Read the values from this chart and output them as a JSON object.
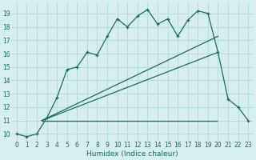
{
  "xlabel": "Humidex (Indice chaleur)",
  "background_color": "#d6eeee",
  "grid_color": "#b8ddd8",
  "line_color": "#1a6b5a",
  "xlim": [
    -0.5,
    23.5
  ],
  "ylim": [
    9.5,
    19.8
  ],
  "yticks": [
    10,
    11,
    12,
    13,
    14,
    15,
    16,
    17,
    18,
    19
  ],
  "xticks": [
    0,
    1,
    2,
    3,
    4,
    5,
    6,
    7,
    8,
    9,
    10,
    11,
    12,
    13,
    14,
    15,
    16,
    17,
    18,
    19,
    20,
    21,
    22,
    23
  ],
  "main_x": [
    0,
    1,
    2,
    3,
    4,
    5,
    6,
    7,
    8,
    9,
    10,
    11,
    12,
    13,
    14,
    15,
    16,
    17,
    18,
    19,
    20,
    21,
    22,
    23
  ],
  "main_y": [
    10.0,
    9.8,
    10.0,
    11.2,
    12.7,
    14.8,
    15.0,
    16.1,
    15.9,
    17.3,
    18.6,
    18.0,
    18.8,
    19.3,
    18.2,
    18.6,
    17.3,
    18.5,
    19.2,
    19.0,
    16.1,
    12.6,
    12.0,
    11.0
  ],
  "line1_x": [
    2.5,
    20
  ],
  "line1_y": [
    11.0,
    17.3
  ],
  "line2_x": [
    2.5,
    20
  ],
  "line2_y": [
    11.0,
    16.1
  ],
  "hline_y": 11.0,
  "hline_x_start": 2.5,
  "hline_x_end": 20.0
}
